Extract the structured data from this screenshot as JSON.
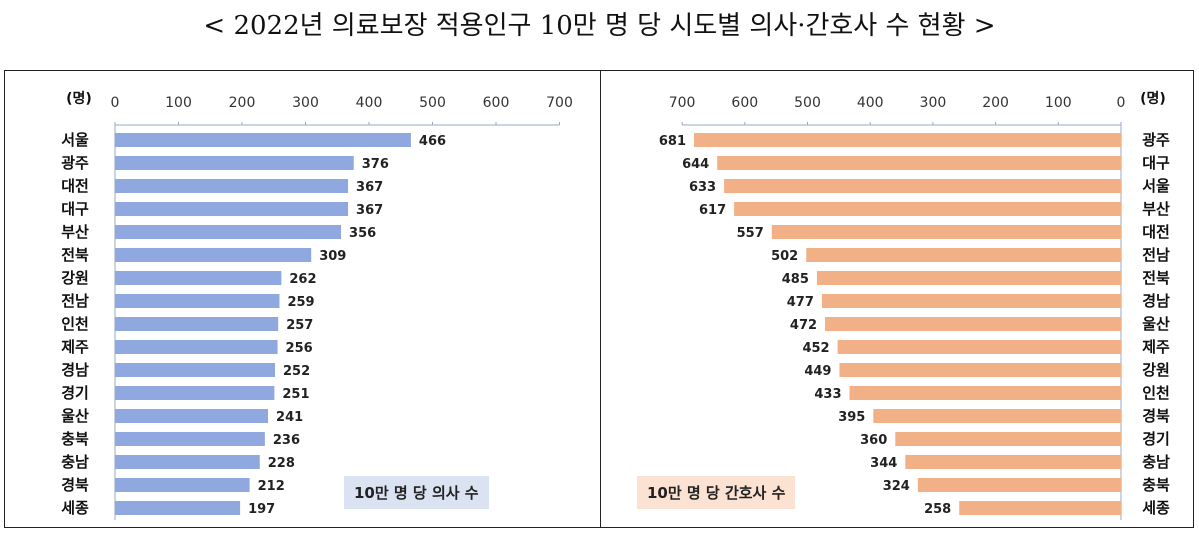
{
  "title": "< 2022년 의료보장 적용인구 10만 명 당 시도별 의사·간호사 수 현황 >",
  "chart_data": [
    {
      "type": "bar",
      "orientation": "horizontal",
      "unit_label": "(명)",
      "legend_label": "10만 명 당 의사 수",
      "bar_color": "#8fa9e0",
      "legend_bg": "#dbe3f3",
      "xlim": [
        0,
        700
      ],
      "xticks": [
        "0",
        "100",
        "200",
        "300",
        "400",
        "500",
        "600",
        "700"
      ],
      "categories": [
        "서울",
        "광주",
        "대전",
        "대구",
        "부산",
        "전북",
        "강원",
        "전남",
        "인천",
        "제주",
        "경남",
        "경기",
        "울산",
        "충북",
        "충남",
        "경북",
        "세종"
      ],
      "values": [
        466,
        376,
        367,
        367,
        356,
        309,
        262,
        259,
        257,
        256,
        252,
        251,
        241,
        236,
        228,
        212,
        197
      ]
    },
    {
      "type": "bar",
      "orientation": "horizontal",
      "axis_reversed": true,
      "unit_label": "(명)",
      "legend_label": "10만 명 당 간호사 수",
      "bar_color": "#f2b086",
      "legend_bg": "#fbe2d2",
      "xlim": [
        0,
        700
      ],
      "xticks": [
        "700",
        "600",
        "500",
        "400",
        "300",
        "200",
        "100",
        "0"
      ],
      "categories": [
        "광주",
        "대구",
        "서울",
        "부산",
        "대전",
        "전남",
        "전북",
        "경남",
        "울산",
        "제주",
        "강원",
        "인천",
        "경북",
        "경기",
        "충남",
        "충북",
        "세종"
      ],
      "values": [
        681,
        644,
        633,
        617,
        557,
        502,
        485,
        477,
        472,
        452,
        449,
        433,
        395,
        360,
        344,
        324,
        258
      ]
    }
  ]
}
